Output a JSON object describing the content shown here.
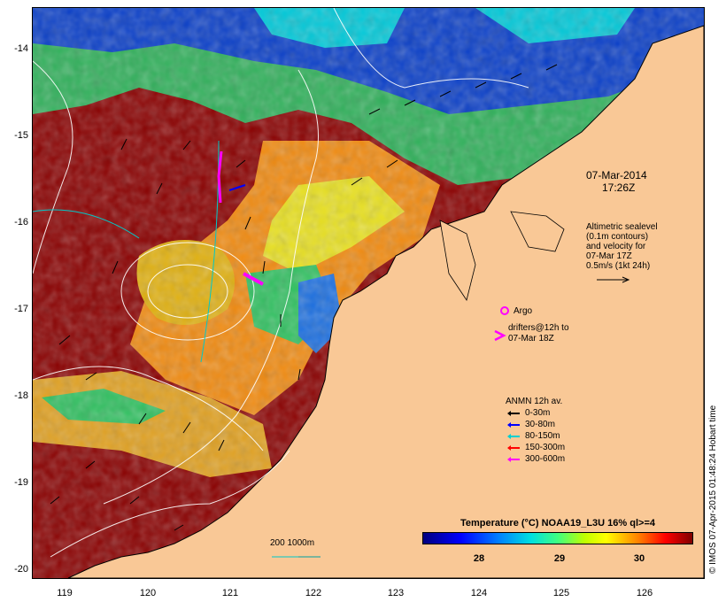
{
  "map": {
    "y_ticks": [
      "-14",
      "-15",
      "-16",
      "-17",
      "-18",
      "-19",
      "-20"
    ],
    "x_ticks": [
      "119",
      "120",
      "121",
      "122",
      "123",
      "124",
      "125",
      "126"
    ],
    "date_line1": "07-Mar-2014",
    "date_line2": "17:26Z",
    "altimetry_lines": [
      "Altimetric sealevel",
      "(0.1m contours)",
      "and velocity for",
      "07-Mar 17Z",
      "0.5m/s (1kt 24h)"
    ],
    "argo_label": "Argo",
    "drifters_line1": "drifters@12h to",
    "drifters_line2": "07-Mar 18Z",
    "isobath_label": "200  1000m",
    "credit": "© IMOS 07-Apr-2015 01:48:24 Hobart time"
  },
  "legend": {
    "title": "ANMN 12h av.",
    "items": [
      {
        "label": "0-30m",
        "color": "#000000"
      },
      {
        "label": "30-80m",
        "color": "#0000ff"
      },
      {
        "label": "80-150m",
        "color": "#00d0d0"
      },
      {
        "label": "150-300m",
        "color": "#ff0000"
      },
      {
        "label": "300-600m",
        "color": "#ff00ff"
      }
    ]
  },
  "colorbar": {
    "title": "Temperature (°C) NOAA19_L3U 16% ql>=4",
    "ticks": [
      "28",
      "29",
      "30"
    ]
  }
}
